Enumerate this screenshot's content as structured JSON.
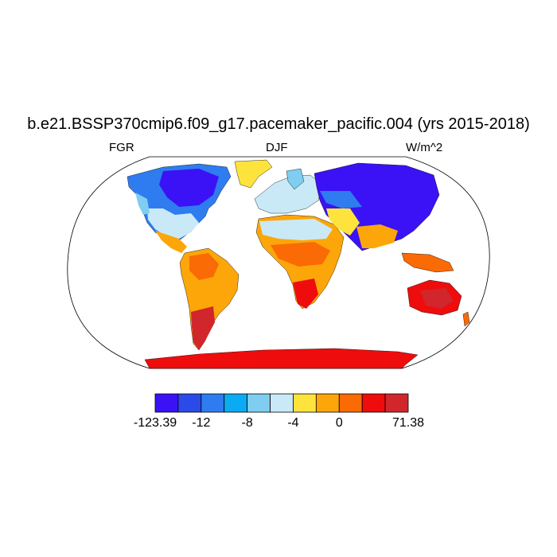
{
  "title": "b.e21.BSSP370cmip6.f09_g17.pacemaker_pacific.004 (yrs 2015-2018)",
  "left_label": "FGR",
  "center_label": "DJF",
  "right_label": "W/m^2",
  "colorbar": {
    "colors": [
      "#3a12f5",
      "#2a4be8",
      "#2f7cf0",
      "#0aabf2",
      "#7fcdf0",
      "#c9e9f7",
      "#fde33c",
      "#fca60a",
      "#fa6a05",
      "#ef0c0c",
      "#d1262b"
    ],
    "labels": [
      "-123.39",
      "-12",
      "-8",
      "-4",
      "0",
      "71.38"
    ]
  },
  "map": {
    "projection": "Robinson",
    "ocean_color": "#ffffff",
    "outline_color": "#000000"
  }
}
